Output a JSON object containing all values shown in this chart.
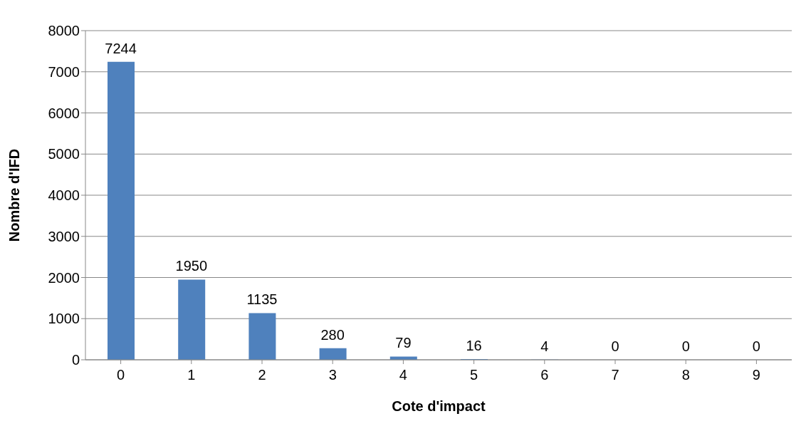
{
  "chart_data": {
    "type": "bar",
    "xlabel": "Cote d'impact",
    "ylabel": "Nombre d'IFD",
    "categories": [
      "0",
      "1",
      "2",
      "3",
      "4",
      "5",
      "6",
      "7",
      "8",
      "9"
    ],
    "values": [
      7244,
      1950,
      1135,
      280,
      79,
      16,
      4,
      0,
      0,
      0
    ],
    "color": "#4f81bd",
    "ylim": [
      0,
      8000
    ],
    "yticks": [
      0,
      1000,
      2000,
      3000,
      4000,
      5000,
      6000,
      7000,
      8000
    ],
    "grid": "y",
    "data_labels": true
  }
}
